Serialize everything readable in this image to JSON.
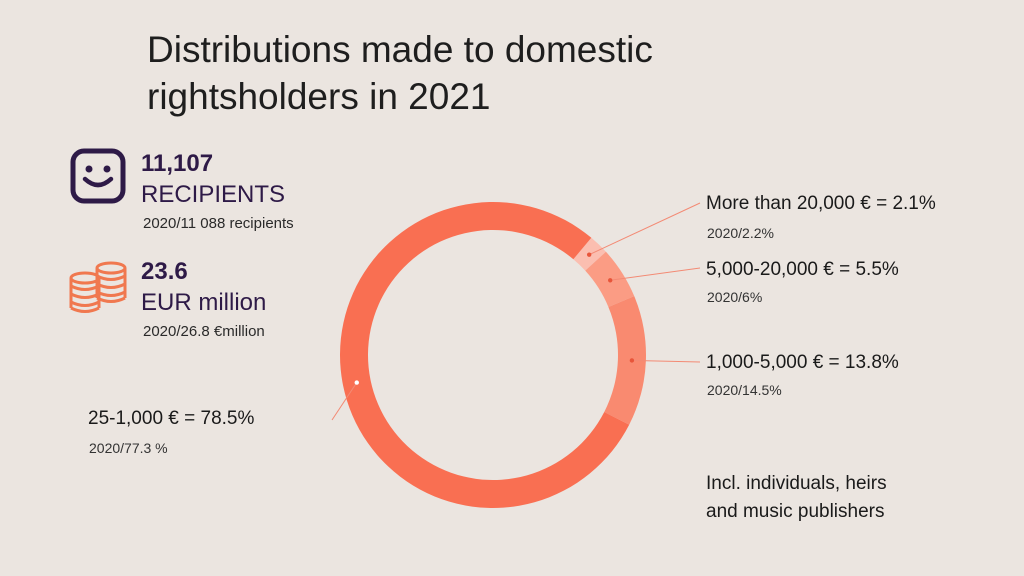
{
  "title_line1": "Distributions made to domestic",
  "title_line2": "rightsholders in 2021",
  "stats": {
    "recipients": {
      "value": "11,107",
      "unit": "RECIPIENTS",
      "note": "2020/11 088 recipients",
      "icon": "smiley-face-icon"
    },
    "money": {
      "value": "23.6",
      "unit": "EUR million",
      "note": "2020/26.8 €million",
      "icon": "coin-stack-icon"
    }
  },
  "colors": {
    "primary": "#f96f52",
    "dark_purple": "#2e1a47",
    "coin": "#f0784f",
    "background": "#ebe5e0"
  },
  "chart_data": {
    "type": "pie",
    "categories": [
      "More than 20,000 €",
      "5,000-20,000 €",
      "1,000-5,000 €",
      "25-1,000 €"
    ],
    "values": [
      2.1,
      5.5,
      13.8,
      78.5
    ],
    "colors": [
      "#fbbeb0",
      "#fb9c84",
      "#f98a70",
      "#f96f52"
    ],
    "labels": [
      "More than 20,000 € = 2.1%",
      "5,000-20,000 € = 5.5%",
      "1,000-5,000 € = 13.8%",
      "25-1,000 € = 78.5%"
    ],
    "previous": [
      "2020/2.2%",
      "2020/6%",
      "2020/14.5%",
      "2020/77.3 %"
    ]
  },
  "footnote_line1": "Incl. individuals, heirs",
  "footnote_line2": "and music publishers"
}
